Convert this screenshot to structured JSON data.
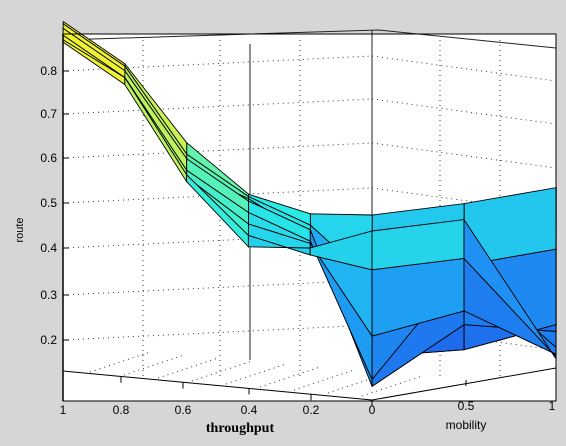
{
  "chart_data": {
    "type": "surface",
    "zlabel": "route",
    "xlabel_left": "throughput",
    "xlabel_right": "mobility",
    "z_ticks": [
      "0.8",
      "0.7",
      "0.6",
      "0.5",
      "0.4",
      "0.3",
      "0.2"
    ],
    "throughput_ticks": [
      "1",
      "0.8",
      "0.6",
      "0.4",
      "0.2",
      "0"
    ],
    "mobility_ticks": [
      "0.5",
      "1"
    ],
    "zlim": [
      0.13,
      0.87
    ],
    "grid": true,
    "colormap": "jet",
    "rows": [
      {
        "label": "throughput=1",
        "values": [
          0.86,
          0.86,
          0.84,
          0.86,
          0.85,
          0.84,
          0.85,
          0.85
        ]
      },
      {
        "label": "throughput=0.8",
        "values": [
          0.78,
          0.78,
          0.77,
          0.78,
          0.77,
          0.77,
          0.78,
          0.77
        ]
      },
      {
        "label": "throughput=0.6",
        "values": [
          0.62,
          0.6,
          0.57,
          0.6,
          0.58,
          0.57,
          0.58,
          0.57
        ]
      },
      {
        "label": "throughput=0.4",
        "values": [
          0.52,
          0.52,
          0.52,
          0.52,
          0.5,
          0.48,
          0.46,
          0.44
        ]
      },
      {
        "label": "throughput=0.2",
        "values": [
          0.49,
          0.47,
          0.45,
          0.47,
          0.45,
          0.45,
          0.43,
          0.45
        ]
      },
      {
        "label": "throughput=0",
        "values": [
          0.5,
          0.36,
          0.2,
          0.14,
          0.16,
          0.26,
          0.41,
          0.5
        ]
      },
      {
        "label": "mobility=0.5",
        "values": [
          0.49,
          0.36,
          0.18,
          0.24,
          0.37,
          0.28,
          0.4,
          0.49
        ]
      },
      {
        "label": "mobility=1",
        "values": [
          0.49,
          0.36,
          0.2,
          0.19,
          0.16,
          0.15,
          0.15,
          0.15
        ]
      }
    ]
  }
}
